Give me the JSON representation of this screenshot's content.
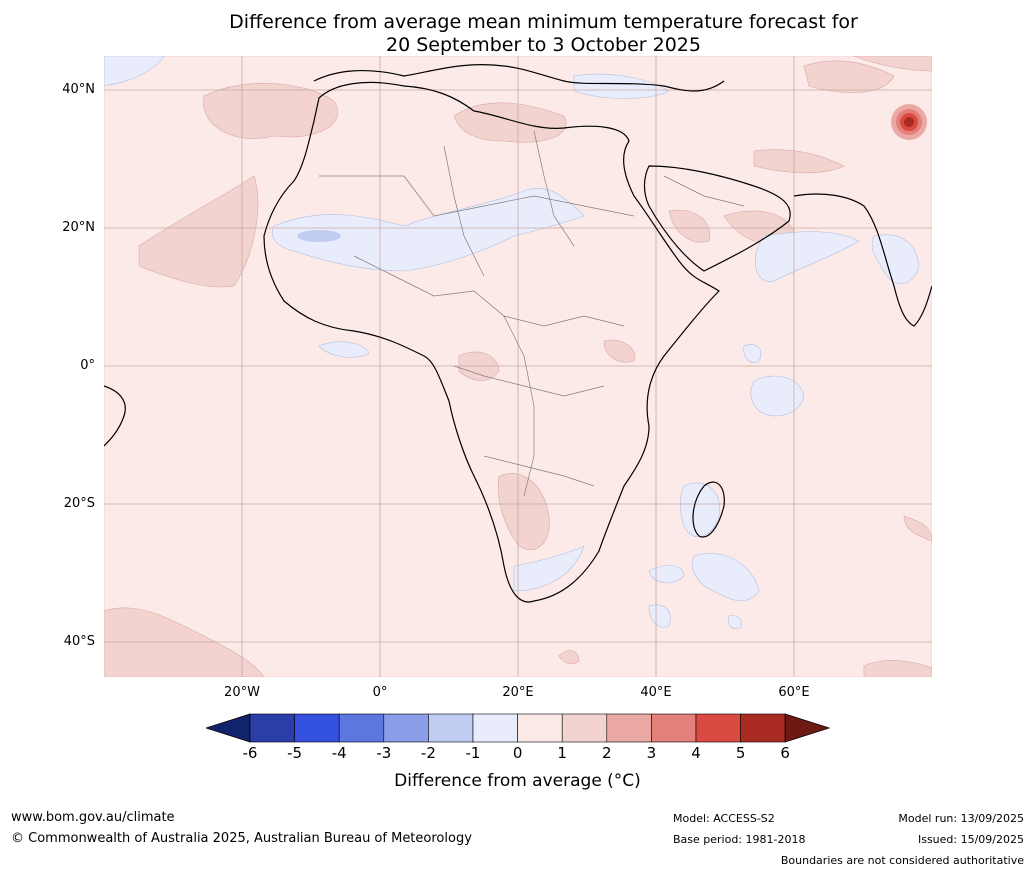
{
  "title_line1": "Difference from average mean minimum temperature forecast for",
  "title_line2": "20 September to 3 October 2025",
  "lat_labels": [
    "40°N",
    "20°N",
    "0°",
    "20°S",
    "40°S"
  ],
  "lon_labels": [
    "20°W",
    "0°",
    "20°E",
    "40°E",
    "60°E"
  ],
  "colorbar": {
    "ticks": [
      "-6",
      "-5",
      "-4",
      "-3",
      "-2",
      "-1",
      "0",
      "1",
      "2",
      "3",
      "4",
      "5",
      "6"
    ],
    "colors": [
      "#13236b",
      "#2b3da8",
      "#3350e0",
      "#5a78e0",
      "#8a9ee8",
      "#c2ccf2",
      "#e9edfb",
      "#fbeae8",
      "#f3d3d0",
      "#eaa9a5",
      "#e3807a",
      "#d94a40",
      "#a82a23",
      "#6e1a14"
    ],
    "label": "Difference from average (°C)"
  },
  "footer": {
    "url": "www.bom.gov.au/climate",
    "copyright": "© Commonwealth of Australia 2025, Australian Bureau of Meteorology",
    "model": "Model: ACCESS-S2",
    "base_period": "Base period: 1981-2018",
    "model_run": "Model run: 13/09/2025",
    "issued": "Issued: 15/09/2025",
    "boundaries": "Boundaries are not considered authoritative"
  }
}
